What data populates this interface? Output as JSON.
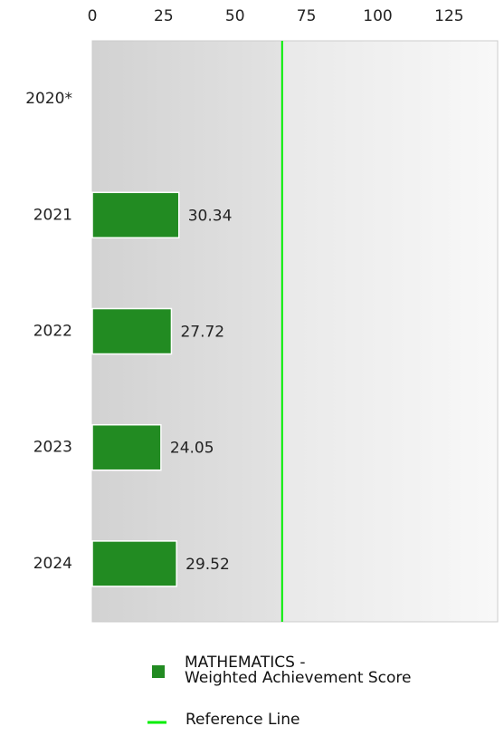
{
  "chart_data": {
    "type": "bar",
    "orientation": "horizontal",
    "categories": [
      "2020*",
      "2021",
      "2022",
      "2023",
      "2024"
    ],
    "series": [
      {
        "name": "MATHEMATICS -\nWeighted Achievement Score",
        "color": "#228b22",
        "values": [
          null,
          30.34,
          27.72,
          24.05,
          29.52
        ]
      }
    ],
    "reference_line": {
      "name": "Reference Line",
      "value": 66.5,
      "color": "#00ee00"
    },
    "xlim": [
      0,
      142
    ],
    "xticks": [
      0,
      25,
      50,
      75,
      100,
      125
    ],
    "grid": false
  }
}
